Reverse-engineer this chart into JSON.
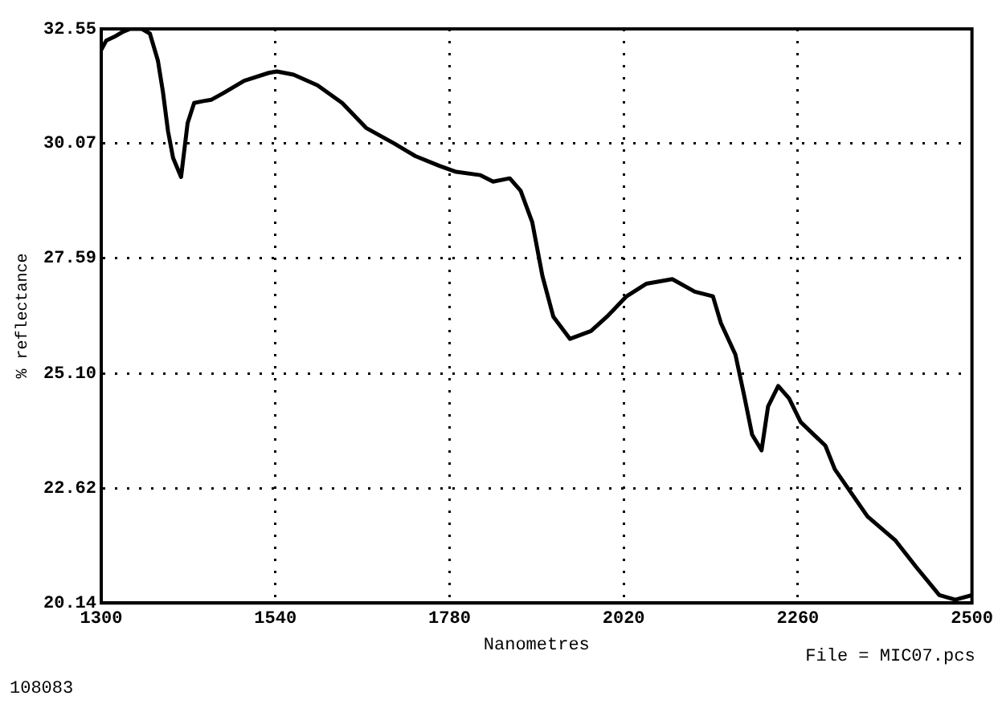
{
  "chart_data": {
    "type": "line",
    "xlabel": "Nanometres",
    "ylabel": "% reflectance",
    "annotations": [
      "File = MIC07.pcs",
      "108083"
    ],
    "xlim": [
      1300,
      2500
    ],
    "xticks": [
      1300,
      1540,
      1780,
      2020,
      2260,
      2500
    ],
    "ylim": [
      20.14,
      32.55
    ],
    "yticks": [
      20.14,
      22.62,
      {
        "value": 25.1,
        "label": "25.10"
      },
      27.59,
      30.07,
      32.55
    ],
    "grid": true,
    "line_style": "solid",
    "marker": "none",
    "legend": false,
    "series": [
      {
        "color": "#000000",
        "x": [
          1300,
          1307,
          1318,
          1329,
          1340,
          1356,
          1367,
          1378,
          1385,
          1392,
          1399,
          1410,
          1419,
          1428,
          1441,
          1452,
          1468,
          1497,
          1531,
          1542,
          1565,
          1598,
          1632,
          1665,
          1704,
          1733,
          1766,
          1789,
          1822,
          1840,
          1863,
          1878,
          1894,
          1908,
          1923,
          1946,
          1975,
          1997,
          2024,
          2051,
          2087,
          2118,
          2143,
          2154,
          2174,
          2186,
          2197,
          2210,
          2219,
          2233,
          2248,
          2264,
          2298,
          2311,
          2356,
          2394,
          2423,
          2455,
          2477,
          2500
        ],
        "values": [
          32.1,
          32.3,
          32.38,
          32.48,
          32.55,
          32.55,
          32.45,
          31.87,
          31.19,
          30.34,
          29.76,
          29.35,
          30.51,
          30.95,
          30.99,
          31.02,
          31.16,
          31.43,
          31.6,
          31.63,
          31.56,
          31.33,
          30.95,
          30.41,
          30.07,
          29.8,
          29.59,
          29.46,
          29.39,
          29.25,
          29.32,
          29.05,
          28.37,
          27.21,
          26.33,
          25.85,
          26.02,
          26.33,
          26.77,
          27.04,
          27.14,
          26.87,
          26.77,
          26.19,
          25.51,
          24.63,
          23.78,
          23.44,
          24.39,
          24.83,
          24.56,
          24.05,
          23.54,
          23.03,
          22.01,
          21.5,
          20.92,
          20.31,
          20.21,
          20.31
        ]
      }
    ]
  }
}
